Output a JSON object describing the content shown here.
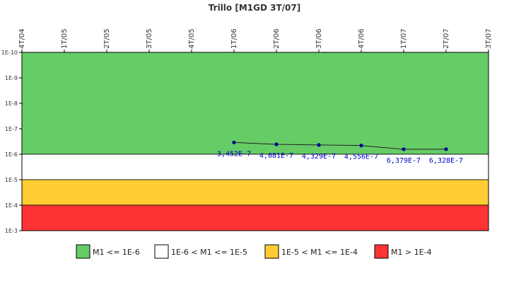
{
  "chart_data": {
    "type": "line",
    "title": "Trillo [M1GD 3T/07]",
    "xlabel": "",
    "ylabel": "",
    "y_scale": "log",
    "y_axis_direction": "inverted",
    "x_ticks": [
      "4T/04",
      "1T/05",
      "2T/05",
      "3T/05",
      "4T/05",
      "1T/06",
      "2T/06",
      "3T/06",
      "4T/06",
      "1T/07",
      "2T/07",
      "3T/07"
    ],
    "y_ticks": [
      "1E-10",
      "1E-9",
      "1E-8",
      "1E-7",
      "1E-6",
      "1E-5",
      "1E-4",
      "1E-3"
    ],
    "ylim": [
      1e-10,
      0.001
    ],
    "bands": [
      {
        "from": 1e-10,
        "to": 1e-06,
        "color": "#66cc66",
        "label": "M1 <= 1E-6"
      },
      {
        "from": 1e-06,
        "to": 1e-05,
        "color": "#ffffff",
        "label": "1E-6 < M1 <= 1E-5"
      },
      {
        "from": 1e-05,
        "to": 0.0001,
        "color": "#ffcc33",
        "label": "1E-5 < M1 <= 1E-4"
      },
      {
        "from": 0.0001,
        "to": 0.001,
        "color": "#ff3333",
        "label": "M1 > 1E-4"
      }
    ],
    "series": [
      {
        "color": "#000099",
        "points": [
          {
            "x": "1T/06",
            "y": 3.452e-07,
            "label": "3,452E-7"
          },
          {
            "x": "2T/06",
            "y": 4.081e-07,
            "label": "4,081E-7"
          },
          {
            "x": "3T/06",
            "y": 4.329e-07,
            "label": "4,329E-7"
          },
          {
            "x": "4T/06",
            "y": 4.556e-07,
            "label": "4,556E-7"
          },
          {
            "x": "1T/07",
            "y": 6.379e-07,
            "label": "6,379E-7"
          },
          {
            "x": "2T/07",
            "y": 6.328e-07,
            "label": "6,328E-7"
          }
        ]
      }
    ],
    "legend_position": "bottom",
    "grid": false
  }
}
